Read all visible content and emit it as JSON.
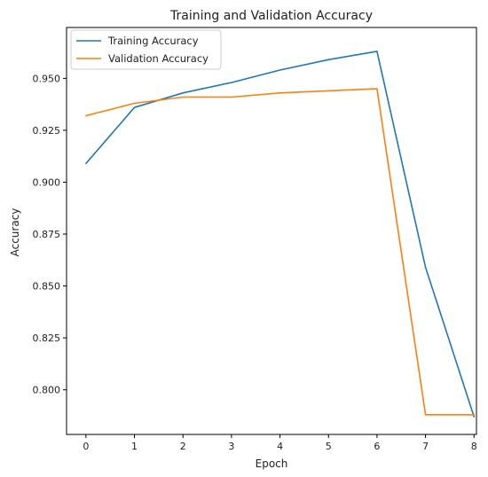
{
  "chart_data": {
    "type": "line",
    "title": "Training and Validation Accuracy",
    "xlabel": "Epoch",
    "ylabel": "Accuracy",
    "x": [
      0,
      1,
      2,
      3,
      4,
      5,
      6,
      7,
      8
    ],
    "xlim": [
      -0.4,
      8.05
    ],
    "ylim": [
      0.7785,
      0.9745
    ],
    "xticks": [
      0,
      1,
      2,
      3,
      4,
      5,
      6,
      7,
      8
    ],
    "yticks": [
      0.8,
      0.825,
      0.85,
      0.875,
      0.9,
      0.925,
      0.95
    ],
    "ytick_labels": [
      "0.800",
      "0.825",
      "0.850",
      "0.875",
      "0.900",
      "0.925",
      "0.950"
    ],
    "grid": false,
    "legend_position": "upper-left",
    "series": [
      {
        "name": "Training Accuracy",
        "color": "#1f77b4",
        "values": [
          0.909,
          0.936,
          0.943,
          0.948,
          0.954,
          0.959,
          0.963,
          0.859,
          0.787
        ]
      },
      {
        "name": "Validation Accuracy",
        "color": "#ff7f0e",
        "values": [
          0.932,
          0.938,
          0.941,
          0.941,
          0.943,
          0.944,
          0.945,
          0.788,
          0.788
        ]
      }
    ]
  }
}
